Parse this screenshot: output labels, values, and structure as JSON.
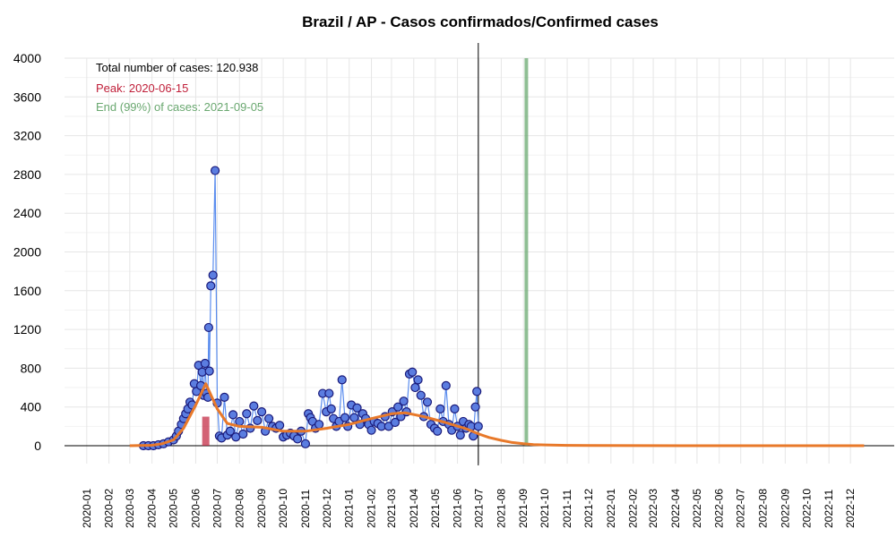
{
  "chart_data": {
    "type": "line",
    "title": "Brazil / AP - Casos confirmados/Confirmed cases",
    "xlabel": "",
    "ylabel": "",
    "ylim": [
      0,
      4000
    ],
    "xlim": [
      "2019-12-01",
      "2023-01-31"
    ],
    "y_ticks": [
      0,
      400,
      800,
      1200,
      1600,
      2000,
      2400,
      2800,
      3200,
      3600,
      4000
    ],
    "x_ticks": [
      "2020-01",
      "2020-02",
      "2020-03",
      "2020-04",
      "2020-05",
      "2020-06",
      "2020-07",
      "2020-08",
      "2020-09",
      "2020-10",
      "2020-11",
      "2020-12",
      "2021-01",
      "2021-02",
      "2021-03",
      "2021-04",
      "2021-05",
      "2021-06",
      "2021-07",
      "2021-08",
      "2021-09",
      "2021-10",
      "2021-11",
      "2021-12",
      "2022-01",
      "2022-02",
      "2022-03",
      "2022-04",
      "2022-05",
      "2022-06",
      "2022-07",
      "2022-08",
      "2022-09",
      "2022-10",
      "2022-11",
      "2022-12"
    ],
    "grid": true,
    "annotations": {
      "total": "Total number of cases: 120.938",
      "peak": "Peak: 2020-06-15",
      "end": "End (99%) of cases: 2021-09-05"
    },
    "colors": {
      "observed_line": "#5b8dee",
      "observed_points": "#5b7de0",
      "observed_outline": "#1a1a7a",
      "fitted": "#e8792a",
      "peak": "#c0203a",
      "end": "#6aa870",
      "today": "#000000"
    },
    "vertical_markers": {
      "today": "2021-06-30",
      "peak": "2020-06-15",
      "end": "2021-09-05"
    },
    "series": [
      {
        "type": "observed",
        "x": [
          "2020-03-20",
          "2020-03-27",
          "2020-04-03",
          "2020-04-10",
          "2020-04-17",
          "2020-04-24",
          "2020-05-01",
          "2020-05-05",
          "2020-05-08",
          "2020-05-12",
          "2020-05-15",
          "2020-05-18",
          "2020-05-21",
          "2020-05-24",
          "2020-05-27",
          "2020-05-30",
          "2020-06-02",
          "2020-06-05",
          "2020-06-08",
          "2020-06-10",
          "2020-06-12",
          "2020-06-14",
          "2020-06-16",
          "2020-06-18",
          "2020-06-19",
          "2020-06-20",
          "2020-06-22",
          "2020-06-25",
          "2020-06-28",
          "2020-07-01",
          "2020-07-04",
          "2020-07-07",
          "2020-07-11",
          "2020-07-15",
          "2020-07-19",
          "2020-07-23",
          "2020-07-27",
          "2020-08-01",
          "2020-08-06",
          "2020-08-11",
          "2020-08-16",
          "2020-08-21",
          "2020-08-26",
          "2020-09-01",
          "2020-09-06",
          "2020-09-11",
          "2020-09-16",
          "2020-09-21",
          "2020-09-26",
          "2020-10-01",
          "2020-10-06",
          "2020-10-11",
          "2020-10-16",
          "2020-10-21",
          "2020-10-26",
          "2020-11-01",
          "2020-11-05",
          "2020-11-08",
          "2020-11-11",
          "2020-11-15",
          "2020-11-20",
          "2020-11-25",
          "2020-11-30",
          "2020-12-04",
          "2020-12-07",
          "2020-12-10",
          "2020-12-14",
          "2020-12-18",
          "2020-12-22",
          "2020-12-26",
          "2020-12-30",
          "2021-01-04",
          "2021-01-08",
          "2021-01-12",
          "2021-01-16",
          "2021-01-20",
          "2021-01-24",
          "2021-01-28",
          "2021-02-01",
          "2021-02-05",
          "2021-02-10",
          "2021-02-15",
          "2021-02-20",
          "2021-02-25",
          "2021-03-02",
          "2021-03-06",
          "2021-03-10",
          "2021-03-14",
          "2021-03-18",
          "2021-03-22",
          "2021-03-26",
          "2021-03-30",
          "2021-04-03",
          "2021-04-07",
          "2021-04-11",
          "2021-04-15",
          "2021-04-20",
          "2021-04-25",
          "2021-04-30",
          "2021-05-04",
          "2021-05-08",
          "2021-05-12",
          "2021-05-16",
          "2021-05-20",
          "2021-05-24",
          "2021-05-28",
          "2021-06-01",
          "2021-06-05",
          "2021-06-09",
          "2021-06-13",
          "2021-06-17",
          "2021-06-20",
          "2021-06-23",
          "2021-06-26",
          "2021-06-28",
          "2021-06-30"
        ],
        "y": [
          0,
          0,
          0,
          10,
          20,
          40,
          60,
          100,
          150,
          220,
          280,
          330,
          380,
          450,
          420,
          640,
          560,
          830,
          620,
          760,
          520,
          850,
          540,
          500,
          1220,
          770,
          1650,
          1760,
          2840,
          440,
          100,
          80,
          500,
          110,
          150,
          320,
          90,
          250,
          120,
          330,
          180,
          410,
          260,
          350,
          150,
          280,
          200,
          180,
          210,
          90,
          110,
          130,
          100,
          70,
          150,
          20,
          330,
          290,
          250,
          180,
          220,
          540,
          350,
          540,
          380,
          280,
          200,
          250,
          680,
          290,
          200,
          420,
          290,
          390,
          220,
          330,
          280,
          220,
          160,
          250,
          230,
          200,
          300,
          200,
          350,
          240,
          400,
          300,
          460,
          350,
          740,
          760,
          600,
          680,
          520,
          300,
          450,
          220,
          180,
          150,
          380,
          250,
          620,
          220,
          160,
          380,
          200,
          110,
          250,
          180,
          220,
          200,
          100,
          400,
          560,
          200
        ]
      },
      {
        "type": "fitted",
        "x": [
          "2020-03-01",
          "2020-04-01",
          "2020-04-15",
          "2020-05-01",
          "2020-05-15",
          "2020-06-01",
          "2020-06-15",
          "2020-07-01",
          "2020-07-15",
          "2020-08-01",
          "2020-09-01",
          "2020-10-01",
          "2020-11-01",
          "2020-12-01",
          "2021-01-01",
          "2021-02-01",
          "2021-03-01",
          "2021-03-20",
          "2021-04-15",
          "2021-05-15",
          "2021-06-15",
          "2021-07-01",
          "2021-07-15",
          "2021-08-01",
          "2021-08-15",
          "2021-09-01",
          "2021-09-15",
          "2021-10-01",
          "2021-11-01",
          "2021-12-01",
          "2022-02-01",
          "2022-06-01",
          "2022-12-20"
        ],
        "y": [
          0,
          5,
          20,
          60,
          180,
          420,
          640,
          380,
          230,
          200,
          190,
          150,
          150,
          180,
          220,
          280,
          330,
          340,
          300,
          240,
          170,
          120,
          85,
          55,
          35,
          20,
          12,
          8,
          4,
          2,
          1,
          0,
          0
        ]
      }
    ]
  }
}
